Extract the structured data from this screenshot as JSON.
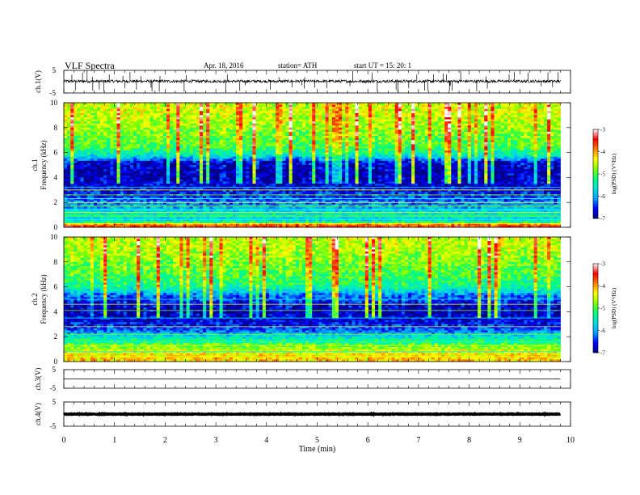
{
  "header": {
    "title": "VLF Spectra",
    "date": "Apr. 18, 2016",
    "station": "station= ATH",
    "start": "start  UT  =    15: 20: 1"
  },
  "chart_data": [
    {
      "type": "line",
      "panel": "ch1-waveform",
      "ylabel": "ch.1(V)",
      "ylim": [
        -5,
        5
      ],
      "yticks": [
        "5",
        "-5"
      ],
      "xlim": [
        0,
        10
      ],
      "data_span_min": [
        0,
        9.8
      ],
      "baseline_v": 0.2,
      "amplitude_v": 1.2,
      "spike_count": 60,
      "color": "#000000"
    },
    {
      "type": "heatmap",
      "panel": "ch1-spectrogram",
      "ylabel_line1": "ch.1",
      "ylabel_line2": "Frequency (kHz)",
      "ylim": [
        0,
        10
      ],
      "yticks": [
        "0",
        "2",
        "4",
        "6",
        "8",
        "10"
      ],
      "xlim": [
        0,
        10
      ],
      "data_span_min": [
        0,
        9.8
      ],
      "colorbar": {
        "label": "log(PSD) (V²/Hz)",
        "range": [
          -7,
          -3
        ],
        "ticks": [
          "-3",
          "-4",
          "-5",
          "-6",
          "-7"
        ],
        "colormap": [
          "#000080",
          "#0000ff",
          "#00a0ff",
          "#00e0e0",
          "#00ff80",
          "#80ff00",
          "#ffff00",
          "#ff8000",
          "#ff0000",
          "#ffffff"
        ]
      },
      "profile": [
        {
          "f_khz": 0.2,
          "log_psd": -3.6
        },
        {
          "f_khz": 0.5,
          "log_psd": -5.8
        },
        {
          "f_khz": 1.0,
          "log_psd": -5.5
        },
        {
          "f_khz": 1.6,
          "log_psd": -6.0
        },
        {
          "f_khz": 2.4,
          "log_psd": -6.4
        },
        {
          "f_khz": 3.0,
          "log_psd": -6.6
        },
        {
          "f_khz": 3.8,
          "log_psd": -6.8
        },
        {
          "f_khz": 4.5,
          "log_psd": -6.8
        },
        {
          "f_khz": 5.2,
          "log_psd": -6.7
        },
        {
          "f_khz": 5.8,
          "log_psd": -5.5
        },
        {
          "f_khz": 6.5,
          "log_psd": -5.0
        },
        {
          "f_khz": 7.5,
          "log_psd": -4.8
        },
        {
          "f_khz": 8.5,
          "log_psd": -4.6
        },
        {
          "f_khz": 9.5,
          "log_psd": -4.5
        },
        {
          "f_khz": 10.0,
          "log_psd": -4.5
        }
      ],
      "lines_khz": [
        0.3,
        0.6,
        0.9,
        1.2,
        1.4,
        1.7,
        2.0,
        2.3,
        2.6,
        3.0,
        3.2
      ]
    },
    {
      "type": "heatmap",
      "panel": "ch2-spectrogram",
      "ylabel_line1": "ch.2",
      "ylabel_line2": "Frequency (kHz)",
      "ylim": [
        0,
        10
      ],
      "yticks": [
        "0",
        "2",
        "4",
        "6",
        "8",
        "10"
      ],
      "xlim": [
        0,
        10
      ],
      "data_span_min": [
        0,
        9.8
      ],
      "colorbar": {
        "label": "log(PSD) (V²/Hz)",
        "range": [
          -7,
          -3
        ],
        "ticks": [
          "-3",
          "-4",
          "-5",
          "-6",
          "-7"
        ],
        "colormap": [
          "#000080",
          "#0000ff",
          "#00a0ff",
          "#00e0e0",
          "#00ff80",
          "#80ff00",
          "#ffff00",
          "#ff8000",
          "#ff0000",
          "#ffffff"
        ]
      },
      "profile": [
        {
          "f_khz": 0.2,
          "log_psd": -4.2
        },
        {
          "f_khz": 0.8,
          "log_psd": -4.4
        },
        {
          "f_khz": 1.2,
          "log_psd": -4.8
        },
        {
          "f_khz": 1.8,
          "log_psd": -5.4
        },
        {
          "f_khz": 2.5,
          "log_psd": -6.3
        },
        {
          "f_khz": 3.2,
          "log_psd": -6.6
        },
        {
          "f_khz": 3.8,
          "log_psd": -6.8
        },
        {
          "f_khz": 4.5,
          "log_psd": -6.7
        },
        {
          "f_khz": 5.3,
          "log_psd": -6.2
        },
        {
          "f_khz": 6.0,
          "log_psd": -5.3
        },
        {
          "f_khz": 7.0,
          "log_psd": -5.0
        },
        {
          "f_khz": 8.0,
          "log_psd": -4.8
        },
        {
          "f_khz": 9.0,
          "log_psd": -4.6
        },
        {
          "f_khz": 10.0,
          "log_psd": -4.5
        }
      ],
      "lines_khz": [
        0.4,
        0.8,
        1.0,
        1.3,
        1.6,
        2.2,
        2.8,
        3.5,
        4.1,
        4.6,
        5.0
      ]
    },
    {
      "type": "line",
      "panel": "ch3-waveform",
      "ylabel": "ch.3(V)",
      "ylim": [
        -5,
        5
      ],
      "yticks": [
        "5",
        "-5"
      ],
      "xlim": [
        0,
        10
      ],
      "data_span_min": [
        0,
        9.8
      ],
      "baseline_v": 0,
      "amplitude_v": 0.05,
      "spike_count": 0,
      "color": "#000000"
    },
    {
      "type": "line",
      "panel": "ch4-waveform",
      "ylabel": "ch.4(V)",
      "ylim": [
        -5,
        5
      ],
      "yticks": [
        "5",
        "-5"
      ],
      "xlim": [
        0,
        10
      ],
      "data_span_min": [
        0,
        9.8
      ],
      "baseline_v": 0,
      "amplitude_v": 0.25,
      "spike_count": 0,
      "color": "#000000"
    }
  ],
  "xaxis": {
    "label": "Time (min)",
    "ticks": [
      "0",
      "1",
      "2",
      "3",
      "4",
      "5",
      "6",
      "7",
      "8",
      "9",
      "10"
    ]
  }
}
